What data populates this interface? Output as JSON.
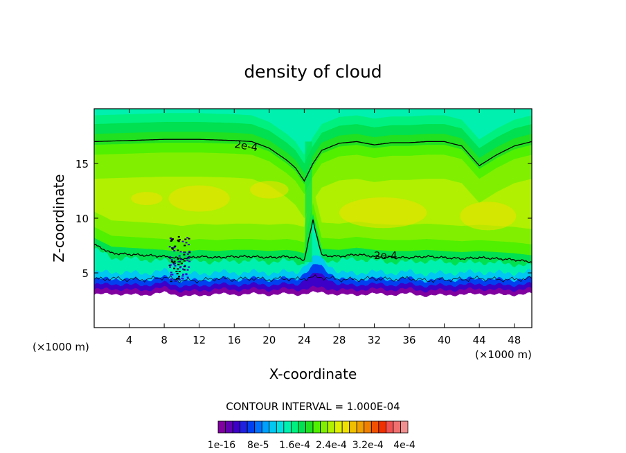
{
  "chart_data": {
    "type": "heatmap",
    "title": "density of cloud",
    "xlabel": "X-coordinate",
    "ylabel": "Z-coordinate",
    "x_unit": "(×1000 m)",
    "z_unit": "(×1000 m)",
    "xlim": [
      0,
      50
    ],
    "ylim": [
      0,
      20
    ],
    "x_ticks": [
      4,
      8,
      12,
      16,
      20,
      24,
      28,
      32,
      36,
      40,
      44,
      48
    ],
    "y_ticks": [
      5,
      10,
      15
    ],
    "contour_interval_text": "CONTOUR INTERVAL = 1.000E-04",
    "contour_labels": [
      "2e-4",
      "2e-4"
    ],
    "colorbar": {
      "tick_labels": [
        "1e-16",
        "8e-5",
        "1.6e-4",
        "2.4e-4",
        "3.2e-4",
        "4e-4"
      ],
      "colors": [
        "#8000a0",
        "#6000b0",
        "#3c00c8",
        "#2020e0",
        "#0040f0",
        "#0070ff",
        "#00a0ff",
        "#00c8f0",
        "#00e0e0",
        "#00f0b0",
        "#00f080",
        "#00e050",
        "#20e020",
        "#50f000",
        "#80f000",
        "#b0f000",
        "#e0f000",
        "#f0e000",
        "#f0c000",
        "#f0a000",
        "#f08000",
        "#f05000",
        "#f03000",
        "#f05050",
        "#f07070",
        "#f09090"
      ]
    },
    "profile_x": [
      0,
      2,
      4,
      6,
      8,
      10,
      12,
      14,
      16,
      18,
      20,
      22,
      23,
      24,
      25,
      26,
      28,
      30,
      32,
      34,
      36,
      38,
      40,
      42,
      44,
      46,
      48,
      50
    ],
    "cloud_base_z": [
      3.0,
      3.1,
      3.0,
      3.0,
      3.2,
      2.9,
      2.9,
      3.1,
      3.0,
      3.1,
      3.0,
      3.1,
      3.0,
      3.1,
      3.2,
      3.2,
      3.0,
      3.0,
      3.1,
      3.0,
      3.1,
      2.9,
      3.0,
      3.0,
      3.1,
      3.0,
      3.0,
      3.1
    ],
    "contour_2e-4_upper_z": [
      17.0,
      17.05,
      17.1,
      17.15,
      17.2,
      17.2,
      17.2,
      17.15,
      17.1,
      17.0,
      16.4,
      15.3,
      14.6,
      13.4,
      15.0,
      16.2,
      16.85,
      17.0,
      16.7,
      16.9,
      16.9,
      17.0,
      17.0,
      16.6,
      14.8,
      15.8,
      16.6,
      17.0
    ],
    "contour_2e-4_lower_z": [
      7.6,
      6.8,
      6.7,
      6.6,
      6.5,
      6.3,
      6.5,
      6.4,
      6.5,
      6.5,
      6.4,
      6.5,
      6.4,
      6.2,
      9.8,
      6.6,
      6.5,
      6.7,
      6.5,
      6.4,
      6.4,
      6.5,
      6.4,
      6.3,
      6.4,
      6.3,
      6.2,
      6.0
    ]
  }
}
